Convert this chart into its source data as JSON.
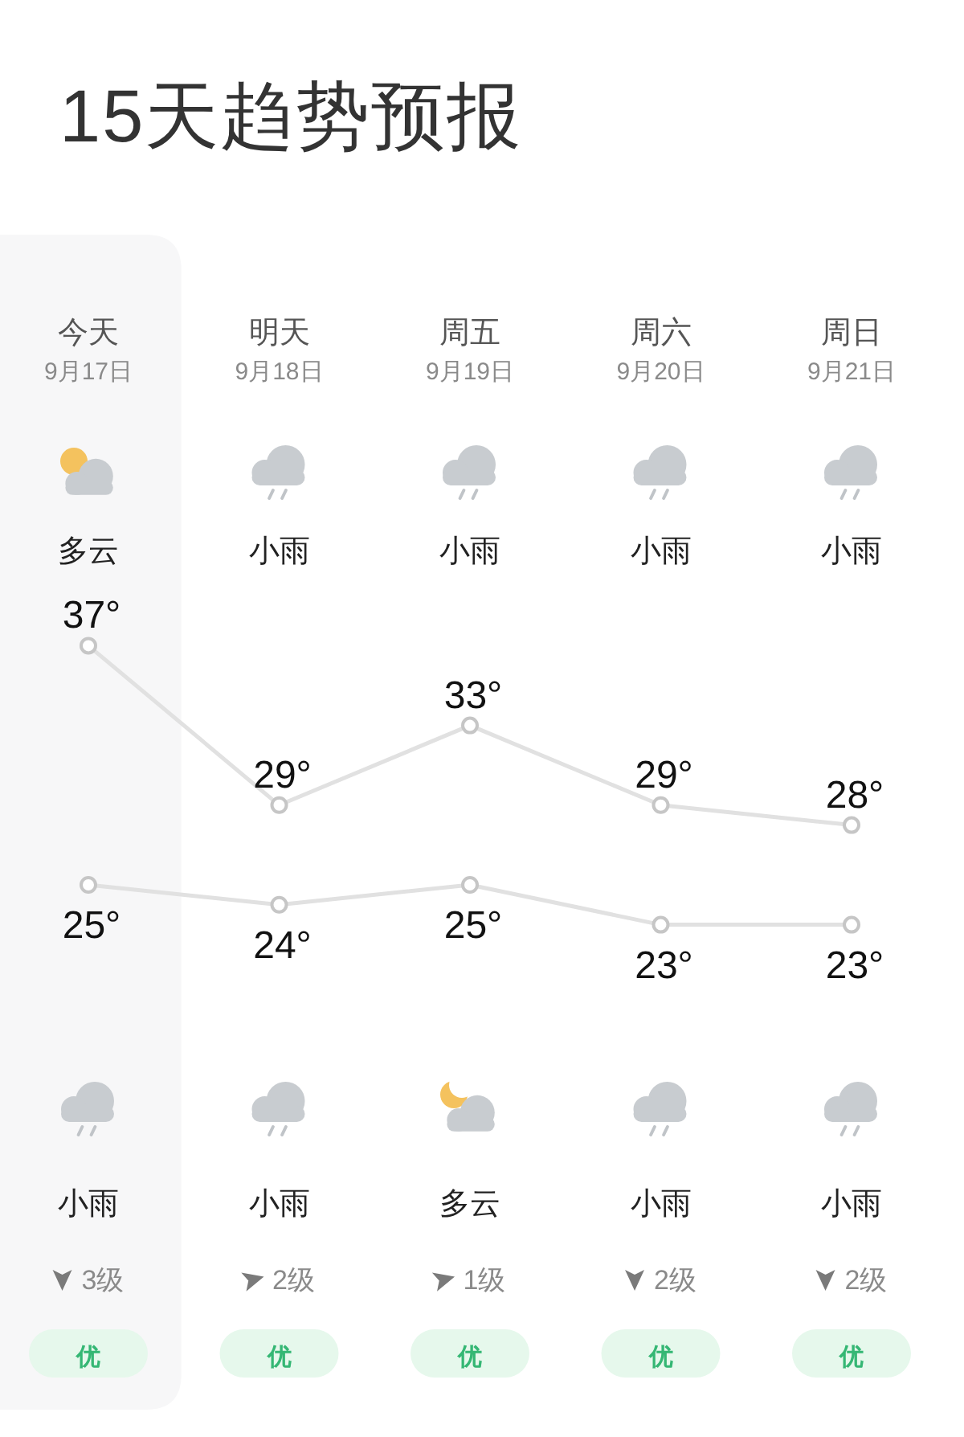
{
  "chart_data": {
    "type": "line",
    "title": "15天趋势预报",
    "categories": [
      "今天",
      "明天",
      "周五",
      "周六",
      "周日"
    ],
    "series": [
      {
        "color": "#e1e1e1",
        "values": [
          37,
          29,
          33,
          29,
          28
        ],
        "value_labels": [
          "37°",
          "29°",
          "33°",
          "29°",
          "28°"
        ]
      },
      {
        "color": "#e1e1e1",
        "values": [
          25,
          24,
          25,
          23,
          23
        ],
        "value_labels": [
          "25°",
          "24°",
          "25°",
          "23°",
          "23°"
        ]
      }
    ],
    "marker": "circle",
    "bands": [
      {
        "axis": "x",
        "from": "今天",
        "to": "今天",
        "color": "#f7f7f8"
      }
    ],
    "annotations": [
      "9月17日",
      "9月18日",
      "9月19日",
      "9月20日",
      "9月21日",
      "多云",
      "小雨",
      "小雨",
      "小雨",
      "小雨",
      "小雨",
      "小雨",
      "多云",
      "小雨",
      "小雨",
      "3级",
      "2级",
      "1级",
      "2级",
      "2级",
      "优",
      "优",
      "优",
      "优",
      "优"
    ]
  }
}
